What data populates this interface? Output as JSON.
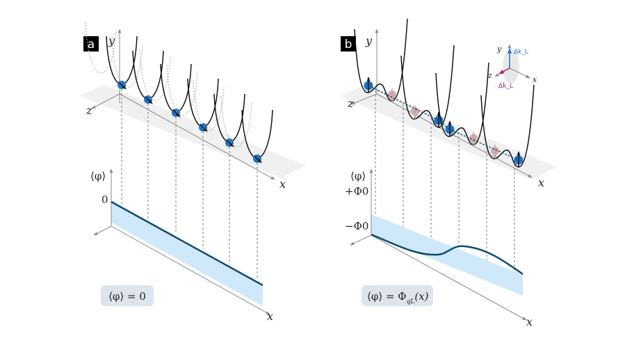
{
  "colors": {
    "curve": "#0d4a6e",
    "band": "#cfe9fb",
    "plane": "#f0f0f0",
    "ball": "#1b74c2",
    "ball_faded": "#d9aaa9",
    "axis": "#8a8a8a",
    "inset_blue": "#1b74c2",
    "inset_magenta": "#a0256e",
    "label_box": "#dde4ec"
  },
  "panel_a": {
    "letter": "a",
    "axis_y": "y",
    "axis_z": "z",
    "axis_x_top": "x",
    "axis_phi": "⟨φ⟩",
    "tick_zero": "0",
    "axis_x_bottom": "x",
    "equation": "⟨φ⟩ = 0"
  },
  "panel_b": {
    "letter": "b",
    "axis_y": "y",
    "axis_z": "z",
    "axis_x_top": "x",
    "axis_phi": "⟨φ⟩",
    "tick_plus": "+Φ0",
    "tick_minus": "−Φ0",
    "axis_x_bottom": "x",
    "equation": "⟨φ⟩ = Φ",
    "equation_sub": "qL",
    "equation_tail": "(x)",
    "inset": {
      "axis_y": "y",
      "axis_z": "z",
      "axis_x": "x",
      "dk": "Δk_L",
      "dk_bar": "Δk̄_L"
    }
  }
}
